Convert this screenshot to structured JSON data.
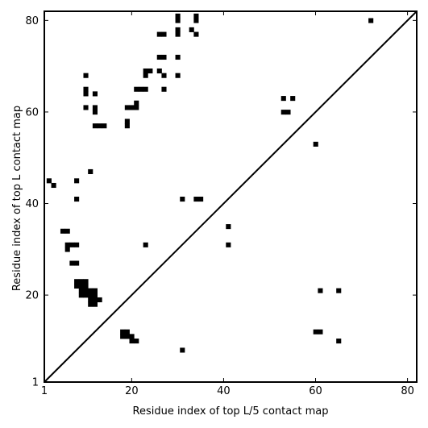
{
  "chart_data": {
    "type": "heatmap",
    "title": "",
    "xlabel": "Residue index of top L/5 contact map",
    "ylabel": "Residue index of top L contact map",
    "xlim": [
      1,
      82
    ],
    "ylim": [
      1,
      82
    ],
    "x_ticks": [
      1,
      20,
      40,
      60,
      80
    ],
    "y_ticks": [
      1,
      20,
      40,
      60,
      80
    ],
    "diagonal": true,
    "grid": false,
    "cell_color": "#000000",
    "background_color": "#ffffff",
    "contacts": [
      [
        30,
        81
      ],
      [
        34,
        81
      ],
      [
        30,
        80
      ],
      [
        34,
        80
      ],
      [
        72,
        80
      ],
      [
        33,
        78
      ],
      [
        30,
        78
      ],
      [
        30,
        77
      ],
      [
        26,
        77
      ],
      [
        27,
        77
      ],
      [
        34,
        77
      ],
      [
        26,
        72
      ],
      [
        27,
        72
      ],
      [
        30,
        72
      ],
      [
        23,
        69
      ],
      [
        24,
        69
      ],
      [
        26,
        69
      ],
      [
        23,
        68
      ],
      [
        27,
        68
      ],
      [
        30,
        68
      ],
      [
        10,
        68
      ],
      [
        21,
        65
      ],
      [
        22,
        65
      ],
      [
        23,
        65
      ],
      [
        27,
        65
      ],
      [
        10,
        65
      ],
      [
        10,
        64
      ],
      [
        12,
        64
      ],
      [
        53,
        63
      ],
      [
        55,
        63
      ],
      [
        21,
        62
      ],
      [
        19,
        61
      ],
      [
        20,
        61
      ],
      [
        21,
        61
      ],
      [
        10,
        61
      ],
      [
        12,
        61
      ],
      [
        12,
        60
      ],
      [
        53,
        60
      ],
      [
        54,
        60
      ],
      [
        19,
        58
      ],
      [
        19,
        57
      ],
      [
        12,
        57
      ],
      [
        13,
        57
      ],
      [
        14,
        57
      ],
      [
        60,
        53
      ],
      [
        11,
        47
      ],
      [
        2,
        45
      ],
      [
        8,
        45
      ],
      [
        3,
        44
      ],
      [
        8,
        41
      ],
      [
        31,
        41
      ],
      [
        34,
        41
      ],
      [
        35,
        41
      ],
      [
        41,
        35
      ],
      [
        5,
        34
      ],
      [
        6,
        34
      ],
      [
        6,
        31
      ],
      [
        7,
        31
      ],
      [
        8,
        31
      ],
      [
        23,
        31
      ],
      [
        41,
        31
      ],
      [
        6,
        30
      ],
      [
        7,
        27
      ],
      [
        8,
        27
      ],
      [
        8,
        23
      ],
      [
        9,
        23
      ],
      [
        10,
        23
      ],
      [
        8,
        22
      ],
      [
        9,
        22
      ],
      [
        10,
        22
      ],
      [
        9,
        21
      ],
      [
        10,
        21
      ],
      [
        11,
        21
      ],
      [
        12,
        21
      ],
      [
        61,
        21
      ],
      [
        65,
        21
      ],
      [
        9,
        20
      ],
      [
        10,
        20
      ],
      [
        11,
        20
      ],
      [
        12,
        20
      ],
      [
        11,
        19
      ],
      [
        12,
        19
      ],
      [
        13,
        19
      ],
      [
        11,
        18
      ],
      [
        12,
        18
      ],
      [
        18,
        12
      ],
      [
        19,
        12
      ],
      [
        60,
        12
      ],
      [
        61,
        12
      ],
      [
        18,
        11
      ],
      [
        19,
        11
      ],
      [
        20,
        11
      ],
      [
        20,
        10
      ],
      [
        21,
        10
      ],
      [
        65,
        10
      ],
      [
        31,
        8
      ]
    ]
  }
}
